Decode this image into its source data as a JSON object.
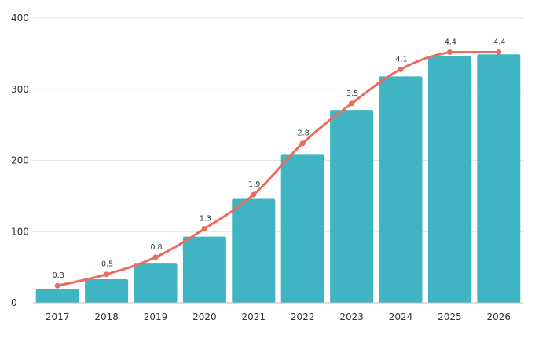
{
  "chart_data": {
    "type": "bar",
    "categories": [
      "2017",
      "2018",
      "2019",
      "2020",
      "2021",
      "2022",
      "2023",
      "2024",
      "2025",
      "2026"
    ],
    "series": [
      {
        "values": [
          19,
          33,
          56,
          93,
          146,
          209,
          271,
          318,
          347,
          349
        ],
        "color": "#3fb5c3"
      },
      {
        "type": "line",
        "values": [
          0.3,
          0.5,
          0.8,
          1.3,
          1.9,
          2.8,
          3.5,
          4.1,
          4.4,
          4.4
        ],
        "color": "#ec6b5f"
      }
    ],
    "point_labels": [
      "0.3",
      "0.5",
      "0.8",
      "1.3",
      "1.9",
      "2.8",
      "3.5",
      "4.1",
      "4.4",
      "4.4"
    ],
    "yticks": [
      "0",
      "100",
      "200",
      "300",
      "400"
    ],
    "ylim": [
      0,
      400
    ],
    "secondary_ylim": [
      0,
      5
    ],
    "grid": true,
    "legend": "none",
    "title": "",
    "xlabel": "",
    "ylabel": ""
  }
}
